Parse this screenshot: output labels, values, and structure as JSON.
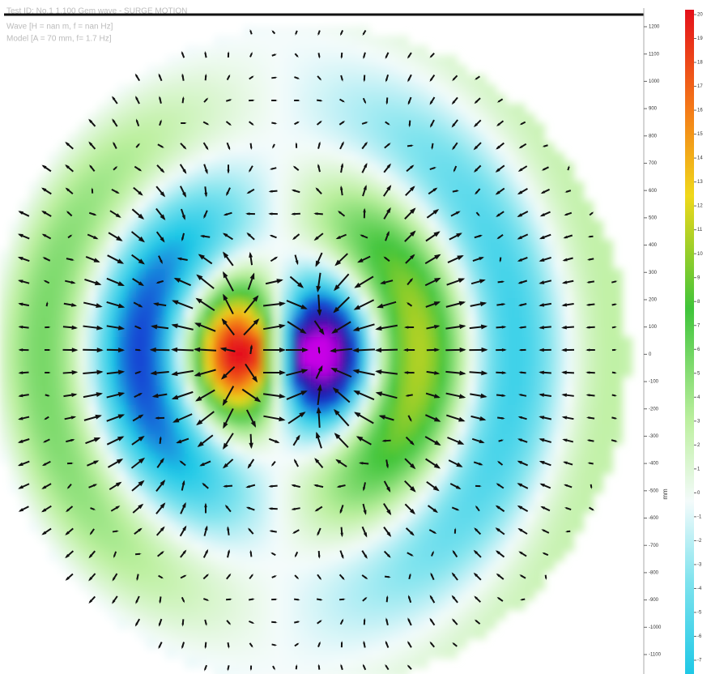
{
  "chart_data": {
    "type": "quiver",
    "title_lines": [
      "Test ID: No.1 1.100 Gem wave - SURGE MOTION",
      "Wave [H = nan m, f = nan Hz]",
      "Model [A = 70 mm, f= 1.7 Hz]"
    ],
    "ylim": [
      -1100,
      1200
    ],
    "yticks": [
      1200,
      1100,
      1000,
      900,
      800,
      700,
      600,
      500,
      400,
      300,
      200,
      100,
      0,
      -100,
      -200,
      -300,
      -400,
      -500,
      -600,
      -700,
      -800,
      -900,
      -1000,
      -1100
    ],
    "ylabel": "mm",
    "colorbar": {
      "lim": [
        -7,
        20
      ],
      "ticks": [
        20,
        19,
        18,
        17,
        16,
        15,
        14,
        13,
        12,
        11,
        10,
        9,
        8,
        7,
        6,
        5,
        4,
        3,
        2,
        1,
        0,
        -1,
        -2,
        -3,
        -4,
        -5,
        -6,
        -7
      ]
    }
  }
}
